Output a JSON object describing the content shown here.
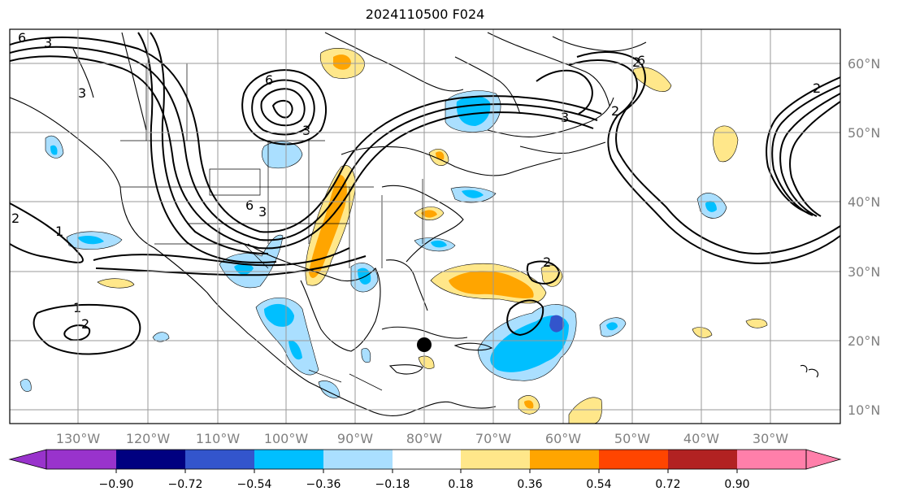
{
  "title": "2024110500 F024",
  "map": {
    "lon_labels": [
      "130°W",
      "120°W",
      "110°W",
      "100°W",
      "90°W",
      "80°W",
      "70°W",
      "60°W",
      "50°W",
      "40°W",
      "30°W"
    ],
    "lat_labels": [
      "60°N",
      "50°N",
      "40°N",
      "30°N",
      "20°N",
      "10°N"
    ],
    "contour_labels": [
      "6",
      "3",
      "6",
      "3",
      "6",
      "3",
      "3",
      "2",
      "2",
      "6",
      "2",
      "1",
      "1",
      "2",
      "2",
      "2",
      "3"
    ]
  },
  "colorbar": {
    "colors": [
      "#9933cc",
      "#000080",
      "#3355cc",
      "#00bfff",
      "#aadfff",
      "#ffffff",
      "#ffe78a",
      "#ffa500",
      "#ff4500",
      "#b22222",
      "#ff7faa"
    ],
    "tick_labels": [
      "−0.90",
      "−0.72",
      "−0.54",
      "−0.36",
      "−0.18",
      "0.18",
      "0.36",
      "0.54",
      "0.72",
      "0.90"
    ]
  }
}
